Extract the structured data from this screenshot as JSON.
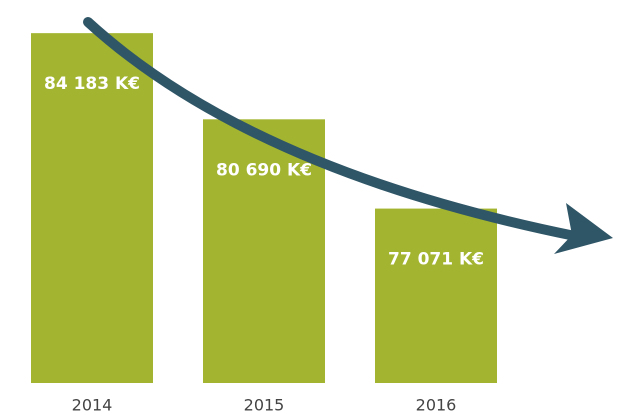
{
  "chart_data": {
    "type": "bar",
    "categories": [
      "2014",
      "2015",
      "2016"
    ],
    "values": [
      84183,
      80690,
      77071
    ],
    "value_labels": [
      "84 183 K€",
      "80 690 K€",
      "77 071 K€"
    ],
    "color": "#a3b530",
    "ylim": [
      70000,
      85000
    ]
  }
}
